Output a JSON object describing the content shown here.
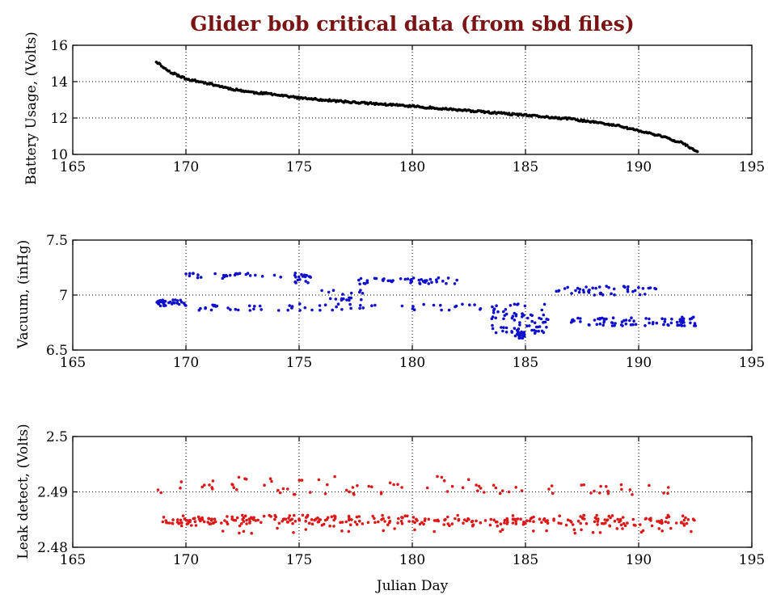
{
  "figure": {
    "title": "Glider bob critical data (from sbd files)",
    "xlabel": "Julian Day"
  },
  "chart_data": [
    {
      "type": "scatter",
      "name": "battery",
      "ylabel": "Battery Usage, (Volts)",
      "color": "#000000",
      "xlim": [
        165,
        195
      ],
      "ylim": [
        10,
        16
      ],
      "xticks": [
        "165",
        "170",
        "175",
        "180",
        "185",
        "190",
        "195"
      ],
      "yticks": [
        "10",
        "12",
        "14",
        "16"
      ],
      "xtick_values": [
        165,
        170,
        175,
        180,
        185,
        190,
        195
      ],
      "ytick_values": [
        10,
        12,
        14,
        16
      ],
      "grid": "dotted",
      "generator": {
        "mode": "trend",
        "x_start": 168.7,
        "x_end": 192.6,
        "points": 420,
        "seed": 11,
        "jitter": 0.05,
        "knots": [
          [
            168.7,
            15.1
          ],
          [
            169.2,
            14.6
          ],
          [
            170,
            14.15
          ],
          [
            171,
            13.9
          ],
          [
            172,
            13.6
          ],
          [
            173,
            13.4
          ],
          [
            174,
            13.3
          ],
          [
            175,
            13.1
          ],
          [
            177,
            12.9
          ],
          [
            180,
            12.65
          ],
          [
            183,
            12.35
          ],
          [
            185,
            12.15
          ],
          [
            187,
            11.95
          ],
          [
            189,
            11.6
          ],
          [
            190,
            11.3
          ],
          [
            191,
            11.0
          ],
          [
            192,
            10.6
          ],
          [
            192.6,
            10.1
          ]
        ]
      }
    },
    {
      "type": "scatter",
      "name": "vacuum",
      "ylabel": "Vacuum, (inHg)",
      "color": "#1010cc",
      "xlim": [
        165,
        195
      ],
      "ylim": [
        6.5,
        7.5
      ],
      "xticks": [
        "165",
        "170",
        "175",
        "180",
        "185",
        "190",
        "195"
      ],
      "yticks": [
        "6.5",
        "7",
        "7.5"
      ],
      "xtick_values": [
        165,
        170,
        175,
        180,
        185,
        190,
        195
      ],
      "ytick_values": [
        6.5,
        7.0,
        7.5
      ],
      "grid": "dotted",
      "generator": {
        "mode": "bands",
        "points": 420,
        "seed": 23,
        "bands": [
          {
            "x": [
              168.7,
              170.0
            ],
            "y": [
              6.9,
              6.96
            ],
            "w": 0.4
          },
          {
            "x": [
              170.0,
              174.2
            ],
            "y": [
              7.15,
              7.2
            ],
            "w": 0.3
          },
          {
            "x": [
              170.0,
              186.0
            ],
            "y": [
              6.86,
              6.92
            ],
            "w": 0.8
          },
          {
            "x": [
              174.8,
              175.6
            ],
            "y": [
              7.1,
              7.2
            ],
            "w": 0.2
          },
          {
            "x": [
              176.0,
              178.0
            ],
            "y": [
              6.95,
              7.05
            ],
            "w": 0.2
          },
          {
            "x": [
              177.5,
              182.4
            ],
            "y": [
              7.1,
              7.16
            ],
            "w": 0.5
          },
          {
            "x": [
              183.5,
              186.0
            ],
            "y": [
              6.65,
              6.85
            ],
            "w": 0.7
          },
          {
            "x": [
              184.5,
              185.0
            ],
            "y": [
              6.6,
              6.66
            ],
            "w": 0.2
          },
          {
            "x": [
              186.3,
              190.8
            ],
            "y": [
              7.0,
              7.08
            ],
            "w": 0.5
          },
          {
            "x": [
              187.0,
              192.6
            ],
            "y": [
              6.72,
              6.8
            ],
            "w": 0.9
          }
        ]
      }
    },
    {
      "type": "scatter",
      "name": "leak",
      "ylabel": "Leak detect, (Volts)",
      "color": "#dd1818",
      "xlim": [
        165,
        195
      ],
      "ylim": [
        2.48,
        2.5
      ],
      "xticks": [
        "165",
        "170",
        "175",
        "180",
        "185",
        "190",
        "195"
      ],
      "yticks": [
        "2.48",
        "2.49",
        "2.5"
      ],
      "xtick_values": [
        165,
        170,
        175,
        180,
        185,
        190,
        195
      ],
      "ytick_values": [
        2.48,
        2.49,
        2.5
      ],
      "grid": "dotted",
      "generator": {
        "mode": "bands",
        "points": 440,
        "seed": 37,
        "bands": [
          {
            "x": [
              168.7,
              192.6
            ],
            "y": [
              2.4838,
              2.4858
            ],
            "w": 1.0
          },
          {
            "x": [
              168.7,
              192.6
            ],
            "y": [
              2.4842,
              2.4852
            ],
            "w": 0.6
          },
          {
            "x": [
              168.7,
              191.5
            ],
            "y": [
              2.4895,
              2.4915
            ],
            "w": 0.35
          },
          {
            "x": [
              169.0,
              192.5
            ],
            "y": [
              2.4825,
              2.4835
            ],
            "w": 0.15
          },
          {
            "x": [
              169.2,
              186.0
            ],
            "y": [
              2.4915,
              2.4928
            ],
            "w": 0.08
          }
        ]
      }
    }
  ]
}
